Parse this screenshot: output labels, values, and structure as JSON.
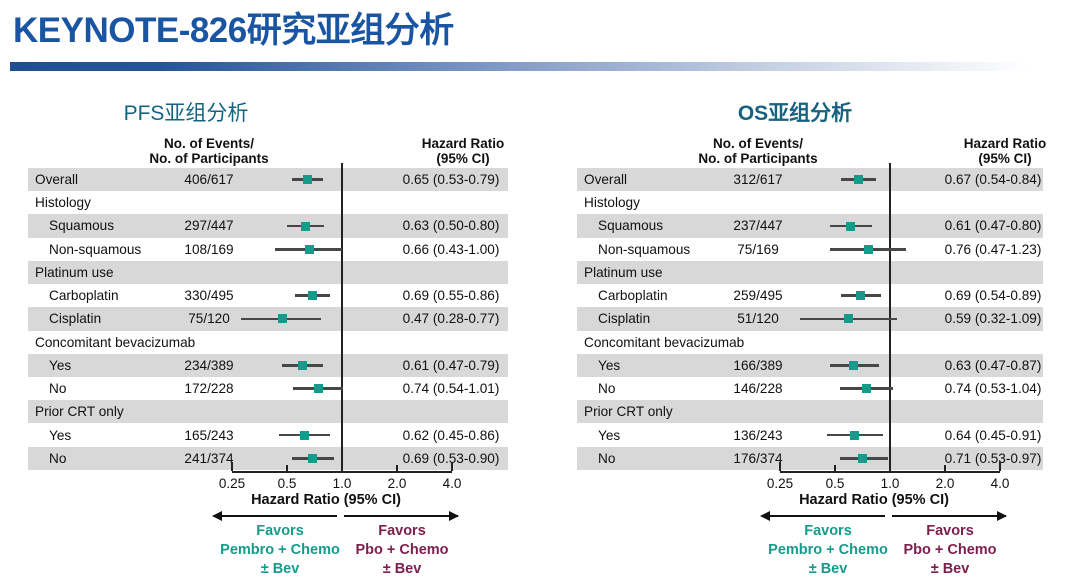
{
  "page_title": "KEYNOTE-826研究亚组分析",
  "colors": {
    "title_blue": "#1a55a3",
    "heading_teal": "#16627f",
    "row_shade": "#d8d8d8",
    "marker_teal": "#169a8c",
    "ci_line_gray": "#474747",
    "favors_teal": "#169a8c",
    "favors_maroon": "#7b1f4e",
    "divider_blue": "#1e4f93"
  },
  "footer": {
    "axis_label": "Hazard Ratio (95% CI)",
    "tick_labels": [
      "0.25",
      "0.5",
      "1.0",
      "2.0",
      "4.0"
    ],
    "tick_values": [
      0.25,
      0.5,
      1.0,
      2.0,
      4.0
    ],
    "favors_left": [
      "Favors",
      "Pembro + Chemo",
      "± Bev"
    ],
    "favors_right": [
      "Favors",
      "Pbo + Chemo",
      "± Bev"
    ]
  },
  "chart_data": [
    {
      "type": "scatter",
      "subtype": "forest-plot",
      "title": "PFS亚组分析",
      "xlabel": "Hazard Ratio (95% CI)",
      "x_scale": "log2",
      "x_ticks": [
        0.25,
        0.5,
        1.0,
        2.0,
        4.0
      ],
      "xlim": [
        0.25,
        4.0
      ],
      "reference_line": 1.0,
      "legend_left": "Favors Pembro + Chemo ± Bev",
      "legend_right": "Favors Pbo + Chemo ± Bev",
      "col_headers": {
        "events": [
          "No. of Events/",
          "No. of Participants"
        ],
        "hr": [
          "Hazard Ratio",
          "(95% CI)"
        ]
      },
      "rows": [
        {
          "label": "Overall",
          "indent": 0,
          "group": false,
          "events": "406/617",
          "hr": 0.65,
          "ci_low": 0.53,
          "ci_high": 0.79,
          "hr_text": "0.65 (0.53-0.79)"
        },
        {
          "label": "Histology",
          "indent": 0,
          "group": true,
          "events": "",
          "hr": null,
          "ci_low": null,
          "ci_high": null,
          "hr_text": ""
        },
        {
          "label": "Squamous",
          "indent": 1,
          "group": false,
          "events": "297/447",
          "hr": 0.63,
          "ci_low": 0.5,
          "ci_high": 0.8,
          "hr_text": "0.63 (0.50-0.80)"
        },
        {
          "label": "Non-squamous",
          "indent": 1,
          "group": false,
          "events": "108/169",
          "hr": 0.66,
          "ci_low": 0.43,
          "ci_high": 1.0,
          "hr_text": "0.66 (0.43-1.00)"
        },
        {
          "label": "Platinum use",
          "indent": 0,
          "group": true,
          "events": "",
          "hr": null,
          "ci_low": null,
          "ci_high": null,
          "hr_text": ""
        },
        {
          "label": "Carboplatin",
          "indent": 1,
          "group": false,
          "events": "330/495",
          "hr": 0.69,
          "ci_low": 0.55,
          "ci_high": 0.86,
          "hr_text": "0.69 (0.55-0.86)"
        },
        {
          "label": "Cisplatin",
          "indent": 1,
          "group": false,
          "events": "75/120",
          "hr": 0.47,
          "ci_low": 0.28,
          "ci_high": 0.77,
          "hr_text": "0.47 (0.28-0.77)"
        },
        {
          "label": "Concomitant bevacizumab",
          "indent": 0,
          "group": true,
          "events": "",
          "hr": null,
          "ci_low": null,
          "ci_high": null,
          "hr_text": ""
        },
        {
          "label": "Yes",
          "indent": 1,
          "group": false,
          "events": "234/389",
          "hr": 0.61,
          "ci_low": 0.47,
          "ci_high": 0.79,
          "hr_text": "0.61 (0.47-0.79)"
        },
        {
          "label": "No",
          "indent": 1,
          "group": false,
          "events": "172/228",
          "hr": 0.74,
          "ci_low": 0.54,
          "ci_high": 1.01,
          "hr_text": "0.74 (0.54-1.01)"
        },
        {
          "label": "Prior CRT only",
          "indent": 0,
          "group": true,
          "events": "",
          "hr": null,
          "ci_low": null,
          "ci_high": null,
          "hr_text": ""
        },
        {
          "label": "Yes",
          "indent": 1,
          "group": false,
          "events": "165/243",
          "hr": 0.62,
          "ci_low": 0.45,
          "ci_high": 0.86,
          "hr_text": "0.62 (0.45-0.86)"
        },
        {
          "label": "No",
          "indent": 1,
          "group": false,
          "events": "241/374",
          "hr": 0.69,
          "ci_low": 0.53,
          "ci_high": 0.9,
          "hr_text": "0.69 (0.53-0.90)"
        }
      ]
    },
    {
      "type": "scatter",
      "subtype": "forest-plot",
      "title": "OS亚组分析",
      "xlabel": "Hazard Ratio (95% CI)",
      "x_scale": "log2",
      "x_ticks": [
        0.25,
        0.5,
        1.0,
        2.0,
        4.0
      ],
      "xlim": [
        0.25,
        4.0
      ],
      "reference_line": 1.0,
      "legend_left": "Favors Pembro + Chemo ± Bev",
      "legend_right": "Favors Pbo + Chemo ± Bev",
      "col_headers": {
        "events": [
          "No. of Events/",
          "No. of Participants"
        ],
        "hr": [
          "Hazard Ratio",
          "(95% CI)"
        ]
      },
      "rows": [
        {
          "label": "Overall",
          "indent": 0,
          "group": false,
          "events": "312/617",
          "hr": 0.67,
          "ci_low": 0.54,
          "ci_high": 0.84,
          "hr_text": "0.67 (0.54-0.84)"
        },
        {
          "label": "Histology",
          "indent": 0,
          "group": true,
          "events": "",
          "hr": null,
          "ci_low": null,
          "ci_high": null,
          "hr_text": ""
        },
        {
          "label": "Squamous",
          "indent": 1,
          "group": false,
          "events": "237/447",
          "hr": 0.61,
          "ci_low": 0.47,
          "ci_high": 0.8,
          "hr_text": "0.61 (0.47-0.80)"
        },
        {
          "label": "Non-squamous",
          "indent": 1,
          "group": false,
          "events": "75/169",
          "hr": 0.76,
          "ci_low": 0.47,
          "ci_high": 1.23,
          "hr_text": "0.76 (0.47-1.23)"
        },
        {
          "label": "Platinum use",
          "indent": 0,
          "group": true,
          "events": "",
          "hr": null,
          "ci_low": null,
          "ci_high": null,
          "hr_text": ""
        },
        {
          "label": "Carboplatin",
          "indent": 1,
          "group": false,
          "events": "259/495",
          "hr": 0.69,
          "ci_low": 0.54,
          "ci_high": 0.89,
          "hr_text": "0.69 (0.54-0.89)"
        },
        {
          "label": "Cisplatin",
          "indent": 1,
          "group": false,
          "events": "51/120",
          "hr": 0.59,
          "ci_low": 0.32,
          "ci_high": 1.09,
          "hr_text": "0.59 (0.32-1.09)"
        },
        {
          "label": "Concomitant bevacizumab",
          "indent": 0,
          "group": true,
          "events": "",
          "hr": null,
          "ci_low": null,
          "ci_high": null,
          "hr_text": ""
        },
        {
          "label": "Yes",
          "indent": 1,
          "group": false,
          "events": "166/389",
          "hr": 0.63,
          "ci_low": 0.47,
          "ci_high": 0.87,
          "hr_text": "0.63 (0.47-0.87)"
        },
        {
          "label": "No",
          "indent": 1,
          "group": false,
          "events": "146/228",
          "hr": 0.74,
          "ci_low": 0.53,
          "ci_high": 1.04,
          "hr_text": "0.74 (0.53-1.04)"
        },
        {
          "label": "Prior CRT only",
          "indent": 0,
          "group": true,
          "events": "",
          "hr": null,
          "ci_low": null,
          "ci_high": null,
          "hr_text": ""
        },
        {
          "label": "Yes",
          "indent": 1,
          "group": false,
          "events": "136/243",
          "hr": 0.64,
          "ci_low": 0.45,
          "ci_high": 0.91,
          "hr_text": "0.64 (0.45-0.91)"
        },
        {
          "label": "No",
          "indent": 1,
          "group": false,
          "events": "176/374",
          "hr": 0.71,
          "ci_low": 0.53,
          "ci_high": 0.97,
          "hr_text": "0.71 (0.53-0.97)"
        }
      ]
    }
  ]
}
